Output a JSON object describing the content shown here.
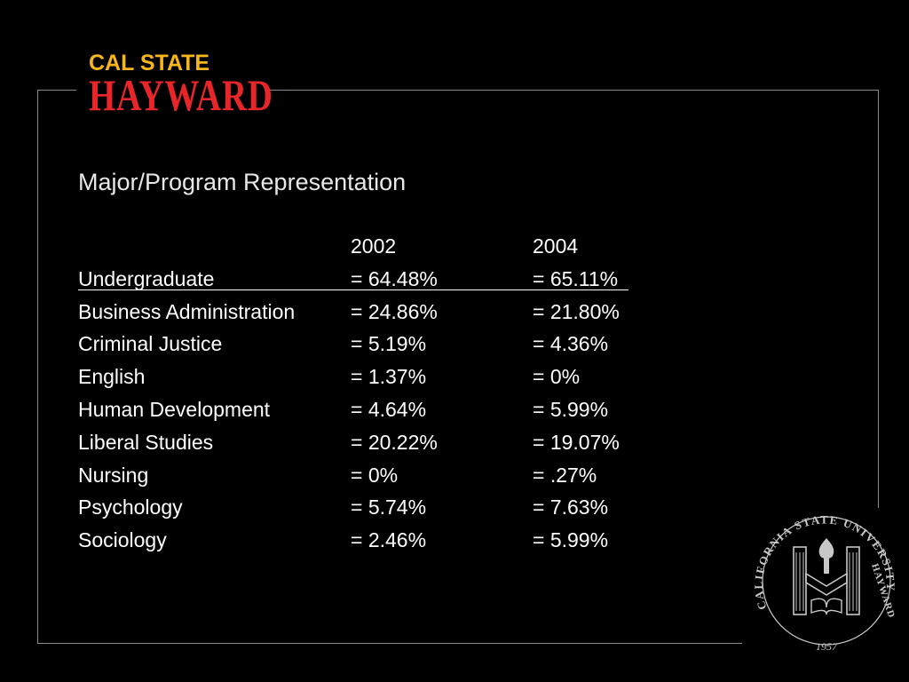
{
  "logo": {
    "line1": "CAL STATE",
    "line2": "HAYWARD"
  },
  "slide": {
    "title": "Major/Program Representation"
  },
  "table": {
    "header": [
      "",
      "2002",
      "2004"
    ],
    "rows": [
      [
        "Undergraduate",
        "= 64.48%",
        "= 65.11%"
      ],
      [
        "Business Administration",
        "= 24.86%",
        "= 21.80%"
      ],
      [
        "Criminal Justice",
        "= 5.19%",
        "= 4.36%"
      ],
      [
        "English",
        "= 1.37%",
        "= 0%"
      ],
      [
        "Human Development",
        "= 4.64%",
        "= 5.99%"
      ],
      [
        "Liberal Studies",
        "= 20.22%",
        "= 19.07%"
      ],
      [
        "Nursing",
        "= 0%",
        "= .27%"
      ],
      [
        "Psychology",
        "= 5.74%",
        "= 7.63%"
      ],
      [
        "Sociology",
        "= 2.46%",
        "= 5.99%"
      ]
    ]
  },
  "seal": {
    "text_top": "CALIFORNIA STATE UNIVERSITY",
    "text_right": "HAYWARD",
    "year": "1957"
  },
  "colors": {
    "background": "#000000",
    "logo_gold": "#f6b51a",
    "logo_red": "#e8262a",
    "text": "#ffffff",
    "frame": "#8a8a8a",
    "seal": "#c8c8c8"
  }
}
